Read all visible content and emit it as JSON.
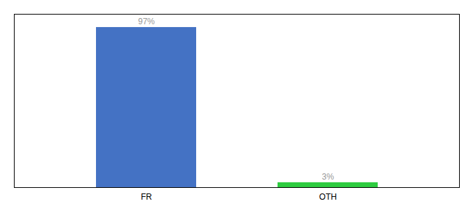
{
  "chart_data": {
    "type": "bar",
    "categories": [
      "FR",
      "OTH"
    ],
    "values": [
      97,
      3
    ],
    "value_labels": [
      "97%",
      "3%"
    ],
    "colors": [
      "#4472c4",
      "#2ecc40"
    ],
    "ylim": [
      0,
      105
    ],
    "yticks": [],
    "data_labels": true,
    "tick_labels": "x",
    "grid": false
  }
}
